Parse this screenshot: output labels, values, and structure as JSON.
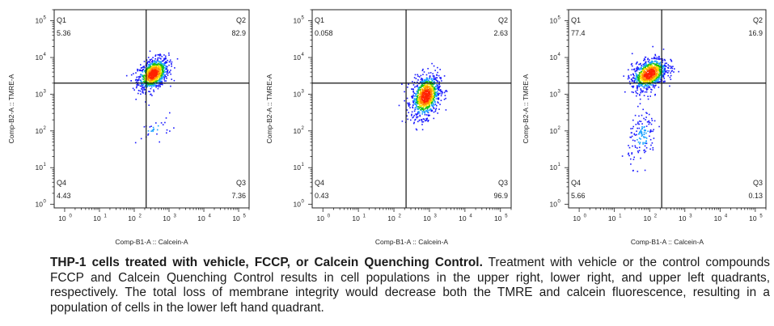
{
  "colors": {
    "axis": "#222222",
    "density_low": "#1a1aff",
    "density_mid": "#18c018",
    "density_high": "#ffe000",
    "density_peak": "#ff2200"
  },
  "chart_data": [
    {
      "type": "scatter",
      "title": "",
      "xlabel": "Comp-B1-A :: Calcein-A",
      "ylabel": "Comp-B2-A :: TMRE-A",
      "x_scale": "log",
      "y_scale": "log",
      "xlim": [
        0.5,
        200000
      ],
      "ylim": [
        0.8,
        200000
      ],
      "x_ticks": [
        "10",
        "10",
        "10",
        "10",
        "10",
        "10"
      ],
      "x_tick_exps": [
        "0",
        "1",
        "2",
        "3",
        "4",
        "5"
      ],
      "y_ticks": [
        "10",
        "10",
        "10",
        "10",
        "10",
        "10"
      ],
      "y_tick_exps": [
        "0",
        "1",
        "2",
        "3",
        "4",
        "5"
      ],
      "gate": {
        "x": 220,
        "y": 2000
      },
      "quadrants": [
        {
          "name": "Q1",
          "value": "5.36"
        },
        {
          "name": "Q2",
          "value": "82.9"
        },
        {
          "name": "Q3",
          "value": "7.36"
        },
        {
          "name": "Q4",
          "value": "4.43"
        }
      ],
      "populations": [
        {
          "center_x_log": 2.55,
          "center_y_log": 3.55,
          "spread_x_log": 0.22,
          "spread_y_log": 0.2,
          "n": 900
        },
        {
          "center_x_log": 2.6,
          "center_y_log": 2.05,
          "spread_x_log": 0.25,
          "spread_y_log": 0.15,
          "n": 30
        }
      ]
    },
    {
      "type": "scatter",
      "title": "",
      "xlabel": "Comp-B1-A :: Calcein-A",
      "ylabel": "Comp-B2-A :: TMRE-A",
      "x_scale": "log",
      "y_scale": "log",
      "xlim": [
        0.5,
        200000
      ],
      "ylim": [
        0.8,
        200000
      ],
      "x_ticks": [
        "10",
        "10",
        "10",
        "10",
        "10",
        "10"
      ],
      "x_tick_exps": [
        "0",
        "1",
        "2",
        "3",
        "4",
        "5"
      ],
      "y_ticks": [
        "10",
        "10",
        "10",
        "10",
        "10",
        "10"
      ],
      "y_tick_exps": [
        "0",
        "1",
        "2",
        "3",
        "4",
        "5"
      ],
      "gate": {
        "x": 220,
        "y": 2000
      },
      "quadrants": [
        {
          "name": "Q1",
          "value": "0.058"
        },
        {
          "name": "Q2",
          "value": "2.63"
        },
        {
          "name": "Q3",
          "value": "96.9"
        },
        {
          "name": "Q4",
          "value": "0.43"
        }
      ],
      "populations": [
        {
          "center_x_log": 2.9,
          "center_y_log": 2.95,
          "spread_x_log": 0.2,
          "spread_y_log": 0.28,
          "n": 900
        }
      ]
    },
    {
      "type": "scatter",
      "title": "",
      "xlabel": "Comp-B1-A :: Calcein-A",
      "ylabel": "Comp-B2-A :: TMRE-A",
      "x_scale": "log",
      "y_scale": "log",
      "xlim": [
        0.5,
        200000
      ],
      "ylim": [
        0.8,
        200000
      ],
      "x_ticks": [
        "10",
        "10",
        "10",
        "10",
        "10",
        "10"
      ],
      "x_tick_exps": [
        "0",
        "1",
        "2",
        "3",
        "4",
        "5"
      ],
      "y_ticks": [
        "10",
        "10",
        "10",
        "10",
        "10",
        "10"
      ],
      "y_tick_exps": [
        "0",
        "1",
        "2",
        "3",
        "4",
        "5"
      ],
      "gate": {
        "x": 220,
        "y": 2000
      },
      "quadrants": [
        {
          "name": "Q1",
          "value": "77.4"
        },
        {
          "name": "Q2",
          "value": "16.9"
        },
        {
          "name": "Q3",
          "value": "0.13"
        },
        {
          "name": "Q4",
          "value": "5.66"
        }
      ],
      "populations": [
        {
          "center_x_log": 2.0,
          "center_y_log": 3.55,
          "spread_x_log": 0.25,
          "spread_y_log": 0.2,
          "n": 900
        },
        {
          "center_x_log": 1.8,
          "center_y_log": 1.85,
          "spread_x_log": 0.2,
          "spread_y_log": 0.35,
          "n": 140
        }
      ]
    }
  ],
  "caption": {
    "lead": "THP-1 cells treated with vehicle, FCCP, or Calcein Quenching Control.",
    "body": " Treatment with vehicle or the control compounds FCCP and Calcein Quenching Control results in cell populations in the upper right, lower right, and upper left quadrants, respectively. The total loss of membrane integrity would decrease both the TMRE and calcein fluorescence, resulting in a population of cells in the lower left hand quadrant."
  }
}
